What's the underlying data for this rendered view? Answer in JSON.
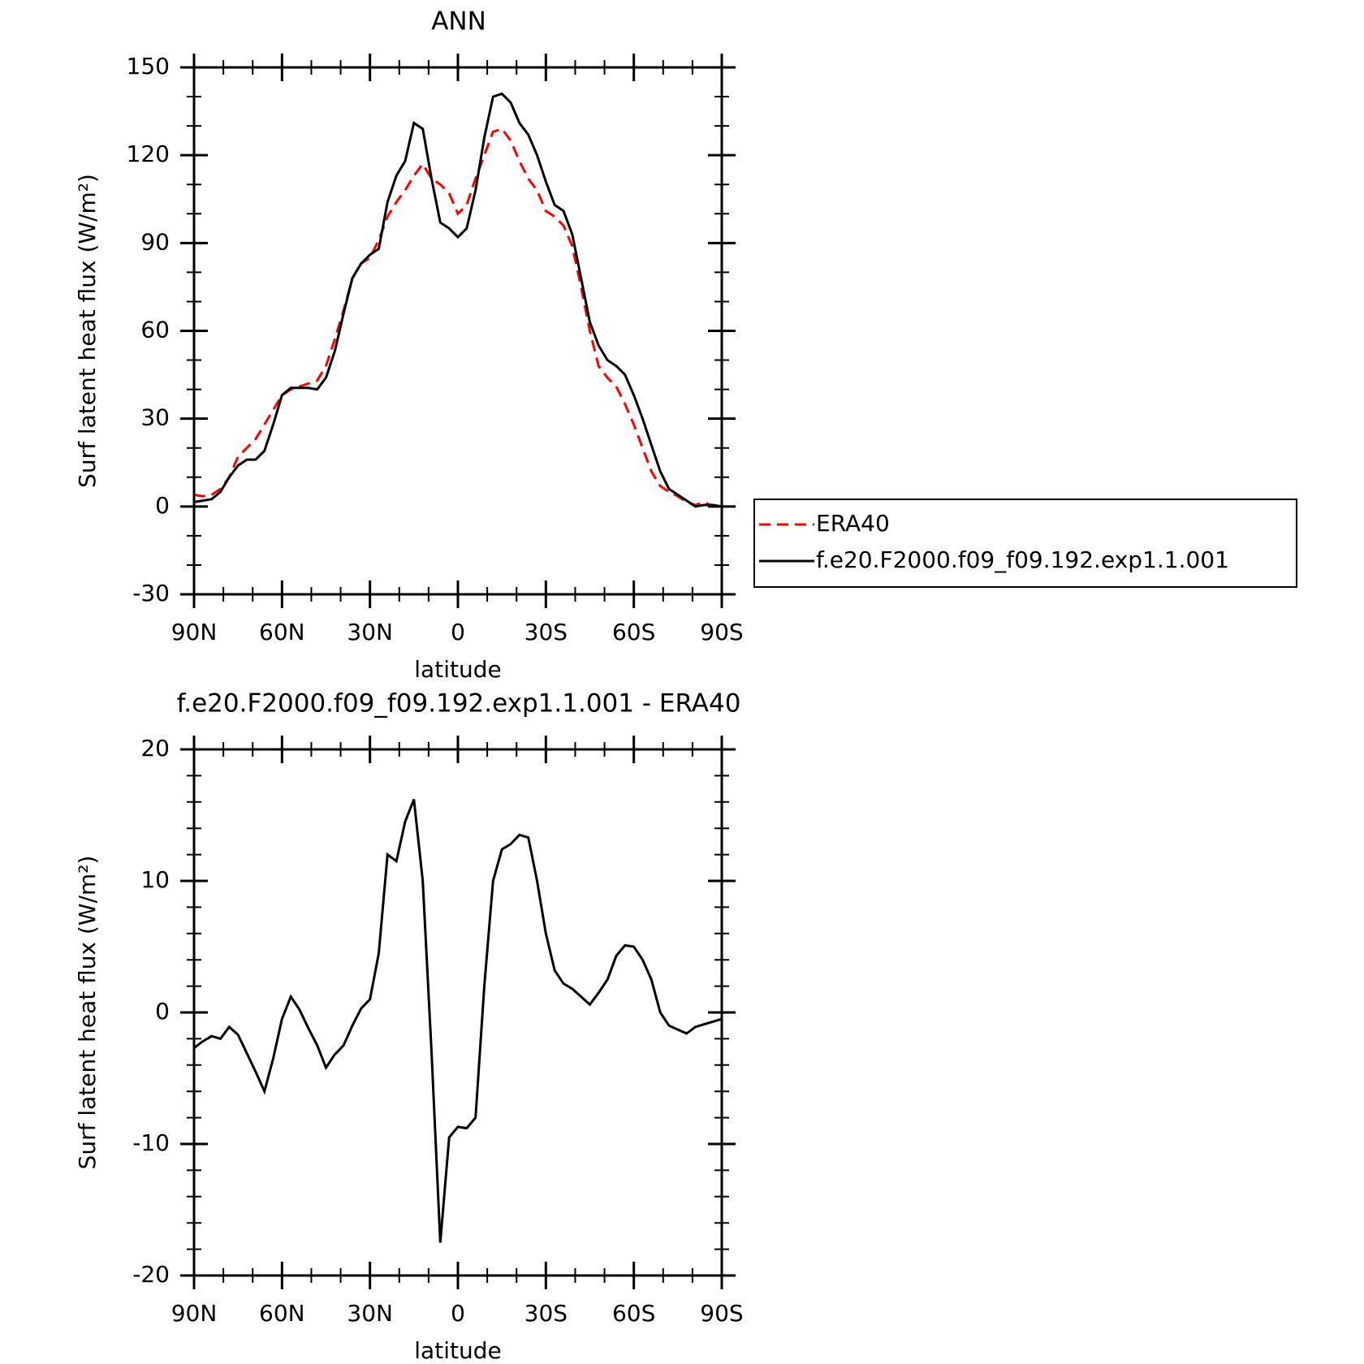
{
  "chart_data": [
    {
      "type": "line",
      "title": "ANN",
      "xlabel": "latitude",
      "ylabel": "Surf latent heat flux (W/m²)",
      "x": [
        90,
        87,
        84,
        81,
        78,
        75,
        72,
        69,
        66,
        63,
        60,
        57,
        54,
        51,
        48,
        45,
        42,
        39,
        36,
        33,
        30,
        27,
        24,
        21,
        18,
        15,
        12,
        9,
        6,
        3,
        0,
        -3,
        -6,
        -9,
        -12,
        -15,
        -18,
        -21,
        -24,
        -27,
        -30,
        -33,
        -36,
        -39,
        -42,
        -45,
        -48,
        -51,
        -54,
        -57,
        -60,
        -63,
        -66,
        -69,
        -72,
        -75,
        -78,
        -81,
        -84,
        -87,
        -90
      ],
      "xlim": [
        90,
        -90
      ],
      "xticks": [
        {
          "value": 90,
          "label": "90N"
        },
        {
          "value": 60,
          "label": "60N"
        },
        {
          "value": 30,
          "label": "30N"
        },
        0,
        {
          "value": -30,
          "label": "30S"
        },
        {
          "value": -60,
          "label": "60S"
        },
        {
          "value": -90,
          "label": "90S"
        }
      ],
      "xminor": 3,
      "ylim": [
        -30,
        150
      ],
      "yticks": [
        -30,
        0,
        30,
        60,
        90,
        120,
        150
      ],
      "yminor": 3,
      "legend": "right",
      "series": [
        {
          "name": "ERA40",
          "color": "#ff0000",
          "dash": true,
          "values": [
            4,
            3.5,
            4,
            6,
            10,
            17,
            20,
            23,
            28,
            33,
            38,
            40,
            41,
            42,
            43,
            48,
            57,
            67,
            78,
            83,
            85,
            91,
            99,
            104,
            108,
            113,
            117,
            112,
            110,
            107,
            100,
            103,
            112,
            120,
            128,
            129,
            125,
            118,
            112,
            108,
            101,
            99,
            96,
            89,
            75,
            60,
            48,
            44,
            41,
            35,
            28,
            20,
            12,
            7,
            5,
            3.5,
            1.5,
            0.5,
            1.5,
            0,
            0
          ]
        },
        {
          "name": "f.e20.F2000.f09_f09.192.exp1.1.001",
          "color": "#000000",
          "dash": false,
          "values": [
            1.5,
            2,
            2.5,
            5,
            10,
            14,
            16,
            16,
            19,
            28,
            38,
            40.5,
            40.5,
            40.5,
            40,
            44,
            53,
            66,
            78,
            83,
            86,
            88,
            104,
            113,
            118,
            131,
            129,
            112,
            97,
            95,
            92,
            95,
            108,
            126,
            140,
            141,
            138,
            131,
            127,
            120,
            111,
            103,
            101,
            93,
            78,
            63,
            55,
            50,
            48,
            45,
            38,
            30,
            21,
            12,
            6,
            4,
            2,
            0,
            0.5,
            0.5,
            0
          ]
        }
      ]
    },
    {
      "type": "line",
      "title": "f.e20.F2000.f09_f09.192.exp1.1.001 - ERA40",
      "xlabel": "latitude",
      "ylabel": "Surf latent heat flux (W/m²)",
      "x": [
        90,
        87,
        84,
        81,
        78,
        75,
        72,
        69,
        66,
        63,
        60,
        57,
        54,
        51,
        48,
        45,
        42,
        39,
        36,
        33,
        30,
        27,
        24,
        21,
        18,
        15,
        12,
        9,
        6,
        3,
        0,
        -3,
        -6,
        -9,
        -12,
        -15,
        -18,
        -21,
        -24,
        -27,
        -30,
        -33,
        -36,
        -39,
        -42,
        -45,
        -48,
        -51,
        -54,
        -57,
        -60,
        -63,
        -66,
        -69,
        -72,
        -75,
        -78,
        -81,
        -84,
        -87,
        -90
      ],
      "xlim": [
        90,
        -90
      ],
      "xticks": [
        {
          "value": 90,
          "label": "90N"
        },
        {
          "value": 60,
          "label": "60N"
        },
        {
          "value": 30,
          "label": "30N"
        },
        0,
        {
          "value": -30,
          "label": "30S"
        },
        {
          "value": -60,
          "label": "60S"
        },
        {
          "value": -90,
          "label": "90S"
        }
      ],
      "xminor": 3,
      "ylim": [
        -20,
        20
      ],
      "yticks": [
        -20,
        -10,
        0,
        10,
        20
      ],
      "yminor": 5,
      "series": [
        {
          "color": "#000000",
          "dash": false,
          "values": [
            -2.7,
            -2.2,
            -1.8,
            -2,
            -1.1,
            -1.7,
            -3.1,
            -4.5,
            -6,
            -3.5,
            -0.5,
            1.2,
            0.2,
            -1.2,
            -2.5,
            -4.2,
            -3.2,
            -2.5,
            -1,
            0.3,
            1,
            4.5,
            12,
            11.5,
            14.5,
            16.2,
            10,
            -3,
            -17.5,
            -9.5,
            -8.7,
            -8.8,
            -8,
            2,
            10,
            12.4,
            12.8,
            13.5,
            13.3,
            10,
            6,
            3.2,
            2.2,
            1.8,
            1.2,
            0.6,
            1.5,
            2.5,
            4.3,
            5.1,
            5,
            4,
            2.5,
            0,
            -1,
            -1.3,
            -1.6,
            -1.1,
            -0.9,
            -0.7,
            -0.5
          ]
        }
      ]
    }
  ]
}
